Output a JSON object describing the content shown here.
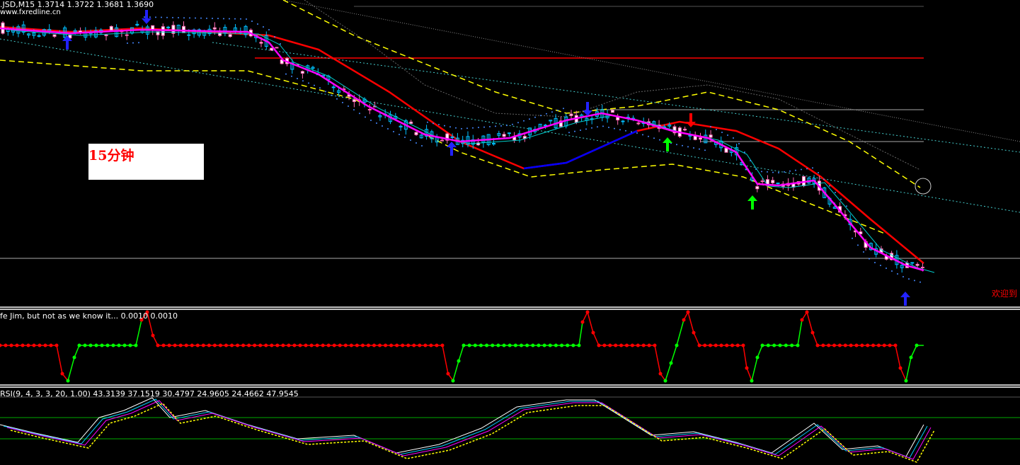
{
  "chart_data": {
    "type": "candlestick",
    "symbol": "JSD,M15",
    "ohlc": {
      "open": "1.3714",
      "high": "1.3722",
      "low": "1.3681",
      "close": "1.3690"
    },
    "header": ".JSD,M15  1.3714 1.3722 1.3681 1.3690",
    "watermark": "www.fxredline.cn",
    "annotation": "15分钟",
    "right_text": "欢迎到",
    "colors": {
      "background": "#000000",
      "up_candle": "#00bfff",
      "down_candle": "#ff69b4",
      "ma_slow": "#ff0000",
      "ma_slow_alt": "#0000ff",
      "ma_fast": "#ff00ff",
      "bands": "#ffff00",
      "signal_up": "#00ff00",
      "signal_down": "#ff0000"
    },
    "indicator1": {
      "label": "fe Jim, but not as we know it...  0.0010 0.0010"
    },
    "indicator2": {
      "label": "RSI(9, 4, 3, 3, 20, 1.00) 43.3139 37.1519 30.4797 24.9605 24.4662 47.9545",
      "levels_visible": true
    }
  }
}
